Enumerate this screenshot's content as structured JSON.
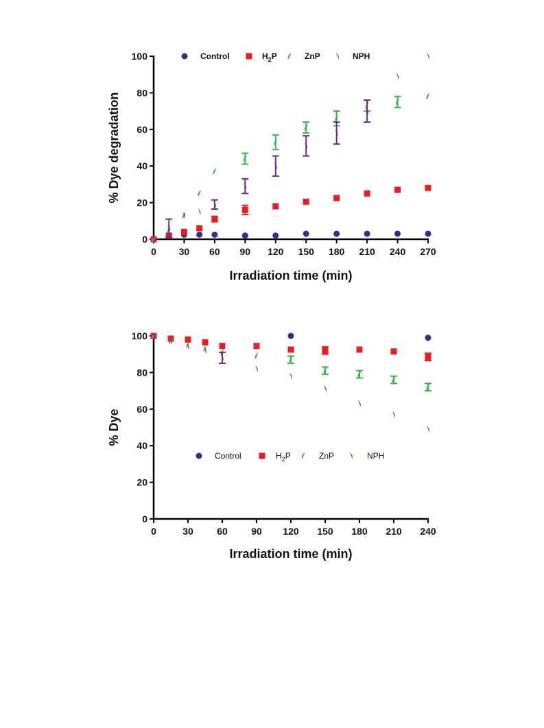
{
  "colors": {
    "Control": "#2e3192",
    "H2P": "#ed1c24",
    "ZnP": "#39b54a",
    "NPH": "#662d91",
    "axis": "#000000"
  },
  "chart_data": [
    {
      "type": "scatter",
      "xlabel": "Irradiation time (min)",
      "ylabel": "% Dye degradation",
      "xlim": [
        0,
        270
      ],
      "ylim": [
        0,
        100
      ],
      "xticks": [
        0,
        30,
        60,
        90,
        120,
        150,
        180,
        210,
        240,
        270
      ],
      "yticks": [
        0,
        20,
        40,
        60,
        80,
        100
      ],
      "legend_position": "top",
      "series": [
        {
          "name": "Control",
          "marker": "circle",
          "x": [
            0,
            15,
            30,
            45,
            60,
            90,
            120,
            150,
            180,
            210,
            240,
            270
          ],
          "y": [
            0,
            2,
            2.5,
            2.5,
            2.5,
            2,
            2,
            3,
            3,
            3,
            3,
            3
          ],
          "err": [
            0,
            0,
            0,
            0,
            0,
            0,
            0,
            0,
            0,
            0,
            0,
            0
          ]
        },
        {
          "name": "H",
          "sub": "2",
          "tail": "P",
          "marker": "square",
          "x": [
            0,
            15,
            30,
            45,
            60,
            90,
            120,
            150,
            180,
            210,
            240,
            270
          ],
          "y": [
            0,
            2,
            4,
            6,
            11,
            16,
            18,
            20.5,
            22.5,
            25,
            27,
            28
          ],
          "err": [
            0,
            0,
            0,
            0,
            1.5,
            2.5,
            0,
            0,
            0,
            0,
            0,
            0
          ]
        },
        {
          "name": "ZnP",
          "marker": "leaf",
          "x": [
            0,
            15,
            30,
            45,
            60,
            90,
            120,
            150,
            180,
            210,
            240,
            270
          ],
          "y": [
            0,
            5,
            13,
            25,
            37,
            44,
            53,
            61,
            66,
            73,
            75,
            78
          ],
          "err": [
            0,
            0,
            0,
            0,
            0,
            3,
            4,
            3,
            4,
            3,
            3,
            0
          ]
        },
        {
          "name": "NPH",
          "marker": "crescent",
          "x": [
            0,
            15,
            30,
            45,
            60,
            90,
            120,
            150,
            180,
            210,
            240,
            270
          ],
          "y": [
            0,
            6,
            13,
            15,
            19,
            29,
            40,
            51,
            58,
            70,
            89,
            100
          ],
          "err": [
            0,
            5,
            0,
            0,
            2.5,
            4,
            5.5,
            5.5,
            6,
            6,
            0,
            0
          ]
        }
      ]
    },
    {
      "type": "scatter",
      "xlabel": "Irradiation time (min)",
      "ylabel": "% Dye",
      "xlim": [
        0,
        240
      ],
      "ylim": [
        0,
        100
      ],
      "xticks": [
        0,
        30,
        60,
        90,
        120,
        150,
        180,
        210,
        240
      ],
      "yticks": [
        0,
        20,
        40,
        60,
        80,
        100
      ],
      "legend_position": "center",
      "series": [
        {
          "name": "Control",
          "marker": "circle",
          "x": [
            0,
            120,
            240
          ],
          "y": [
            100,
            100,
            99
          ],
          "err": [
            0,
            0,
            0
          ]
        },
        {
          "name": "H",
          "sub": "2",
          "tail": "P",
          "marker": "square",
          "x": [
            0,
            15,
            30,
            45,
            60,
            90,
            120,
            150,
            180,
            210,
            240
          ],
          "y": [
            100,
            98.5,
            98,
            96.5,
            94.5,
            94.5,
            92.5,
            92,
            92.5,
            91.5,
            88.5
          ],
          "err": [
            0,
            0,
            0,
            0,
            0,
            0,
            0,
            2,
            0,
            0,
            2
          ]
        },
        {
          "name": "ZnP",
          "marker": "leaf",
          "x": [
            0,
            15,
            30,
            45,
            60,
            90,
            120,
            150,
            180,
            210,
            240
          ],
          "y": [
            100,
            97,
            95,
            93,
            91,
            89,
            87,
            81,
            79,
            76,
            72
          ],
          "err": [
            0,
            0,
            0,
            0,
            0,
            0,
            2,
            2,
            2,
            2,
            2
          ]
        },
        {
          "name": "NPH",
          "marker": "crescent",
          "x": [
            0,
            15,
            30,
            45,
            60,
            90,
            120,
            150,
            180,
            210,
            240
          ],
          "y": [
            100,
            97,
            94,
            92,
            88,
            82,
            78,
            71,
            63,
            57,
            49
          ],
          "err": [
            0,
            0,
            0,
            0,
            3,
            0,
            0,
            0,
            0,
            0,
            0
          ]
        }
      ]
    }
  ]
}
